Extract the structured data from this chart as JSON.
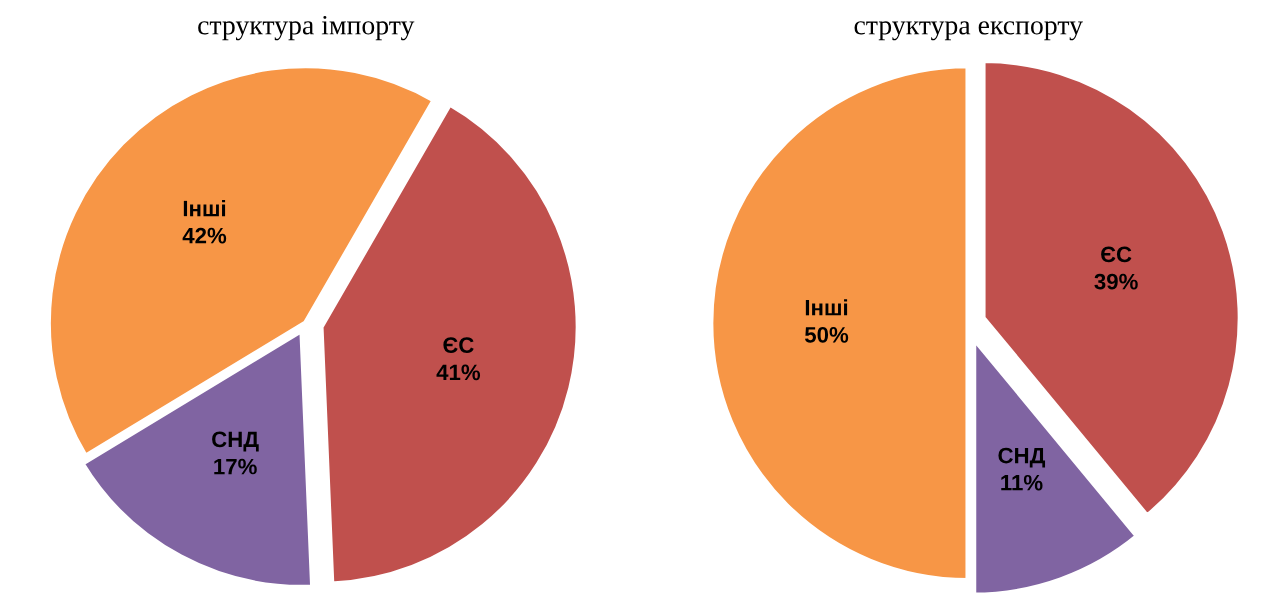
{
  "chart_data": [
    {
      "type": "pie",
      "title": "структура імпорту",
      "categories": [
        "ЄС",
        "СНД",
        "Інші"
      ],
      "values": [
        41,
        17,
        42
      ],
      "value_labels": [
        "41%",
        "17%",
        "42%"
      ],
      "colors": [
        "#c0504d",
        "#8064a2",
        "#f79646"
      ]
    },
    {
      "type": "pie",
      "title": "структура експорту",
      "categories": [
        "ЄС",
        "СНД",
        "Інші"
      ],
      "values": [
        39,
        11,
        50
      ],
      "value_labels": [
        "39%",
        "11%",
        "50%"
      ],
      "colors": [
        "#c0504d",
        "#8064a2",
        "#f79646"
      ]
    }
  ]
}
